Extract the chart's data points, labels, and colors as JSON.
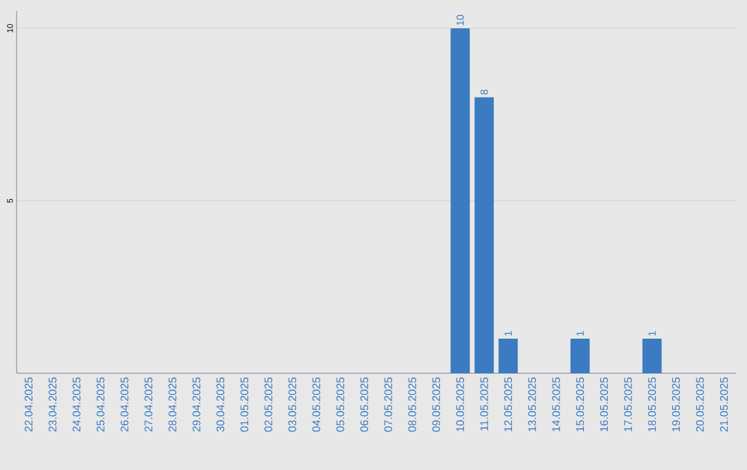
{
  "chart_data": {
    "type": "bar",
    "categories": [
      "22.04.2025",
      "23.04.2025",
      "24.04.2025",
      "25.04.2025",
      "26.04.2025",
      "27.04.2025",
      "28.04.2025",
      "29.04.2025",
      "30.04.2025",
      "01.05.2025",
      "02.05.2025",
      "03.05.2025",
      "04.05.2025",
      "05.05.2025",
      "06.05.2025",
      "07.05.2025",
      "08.05.2025",
      "09.05.2025",
      "10.05.2025",
      "11.05.2025",
      "12.05.2025",
      "13.05.2025",
      "14.05.2025",
      "15.05.2025",
      "16.05.2025",
      "17.05.2025",
      "18.05.2025",
      "19.05.2025",
      "20.05.2025",
      "21.05.2025"
    ],
    "values": [
      0,
      0,
      0,
      0,
      0,
      0,
      0,
      0,
      0,
      0,
      0,
      0,
      0,
      0,
      0,
      0,
      0,
      0,
      10,
      8,
      1,
      0,
      0,
      1,
      0,
      0,
      1,
      0,
      0,
      0
    ],
    "value_labels": [
      null,
      null,
      null,
      null,
      null,
      null,
      null,
      null,
      null,
      null,
      null,
      null,
      null,
      null,
      null,
      null,
      null,
      null,
      "10",
      "8",
      "1",
      null,
      null,
      "1",
      null,
      null,
      "1",
      null,
      null,
      null
    ],
    "color": "#3a7bc1",
    "ylim": [
      0,
      10.5
    ],
    "yticks": [
      5,
      10
    ],
    "grid": "y"
  }
}
